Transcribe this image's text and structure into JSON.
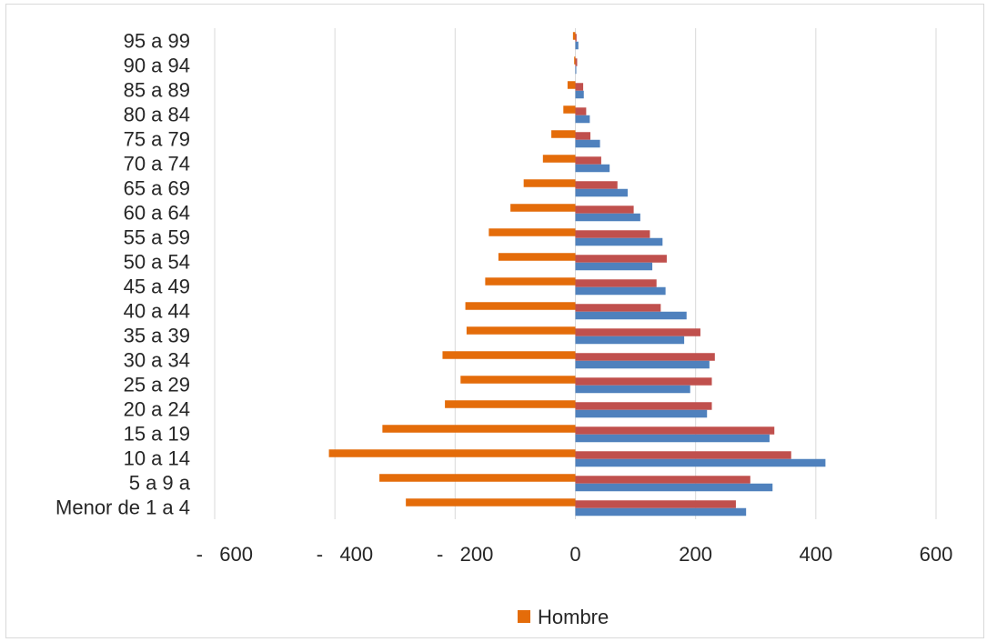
{
  "chart_data": {
    "type": "bar",
    "orientation": "horizontal",
    "categories": [
      "Menor de 1 a 4",
      "5 a 9 a",
      "10 a 14",
      "15 a 19",
      "20 a 24",
      "25 a 29",
      "30 a 34",
      "35 a 39",
      "40 a 44",
      "45 a 49",
      "50 a 54",
      "55 a 59",
      "60 a 64",
      "65 a 69",
      "70 a 74",
      "75 a 79",
      "80 a 84",
      "85 a 89",
      "90 a 94",
      "95 a 99"
    ],
    "series": [
      {
        "name": "Hombre",
        "color": "#E46C0A",
        "values": [
          -282,
          -326,
          -410,
          -321,
          -217,
          -191,
          -221,
          -181,
          -183,
          -150,
          -128,
          -144,
          -108,
          -86,
          -54,
          -40,
          -20,
          -13,
          -2,
          -4
        ],
        "in_legend": true
      },
      {
        "color": "#C0504D",
        "values": [
          267,
          291,
          359,
          331,
          227,
          227,
          232,
          208,
          142,
          135,
          152,
          124,
          97,
          70,
          43,
          25,
          18,
          13,
          3,
          2
        ],
        "in_legend": false
      },
      {
        "color": "#4F81BD",
        "values": [
          284,
          328,
          416,
          323,
          219,
          191,
          223,
          181,
          185,
          150,
          128,
          145,
          108,
          87,
          57,
          41,
          24,
          14,
          1,
          5
        ],
        "in_legend": false
      }
    ],
    "xlim": [
      -600,
      600
    ],
    "xticks": [
      -600,
      -400,
      -200,
      0,
      200,
      400,
      600
    ],
    "xtick_labels": [
      "-   600",
      "-   400",
      "-   200",
      "0",
      "200",
      "400",
      "600"
    ],
    "grid": "vertical",
    "legend_position": "bottom",
    "legend": [
      {
        "label": "Hombre",
        "color": "#E46C0A"
      }
    ]
  }
}
